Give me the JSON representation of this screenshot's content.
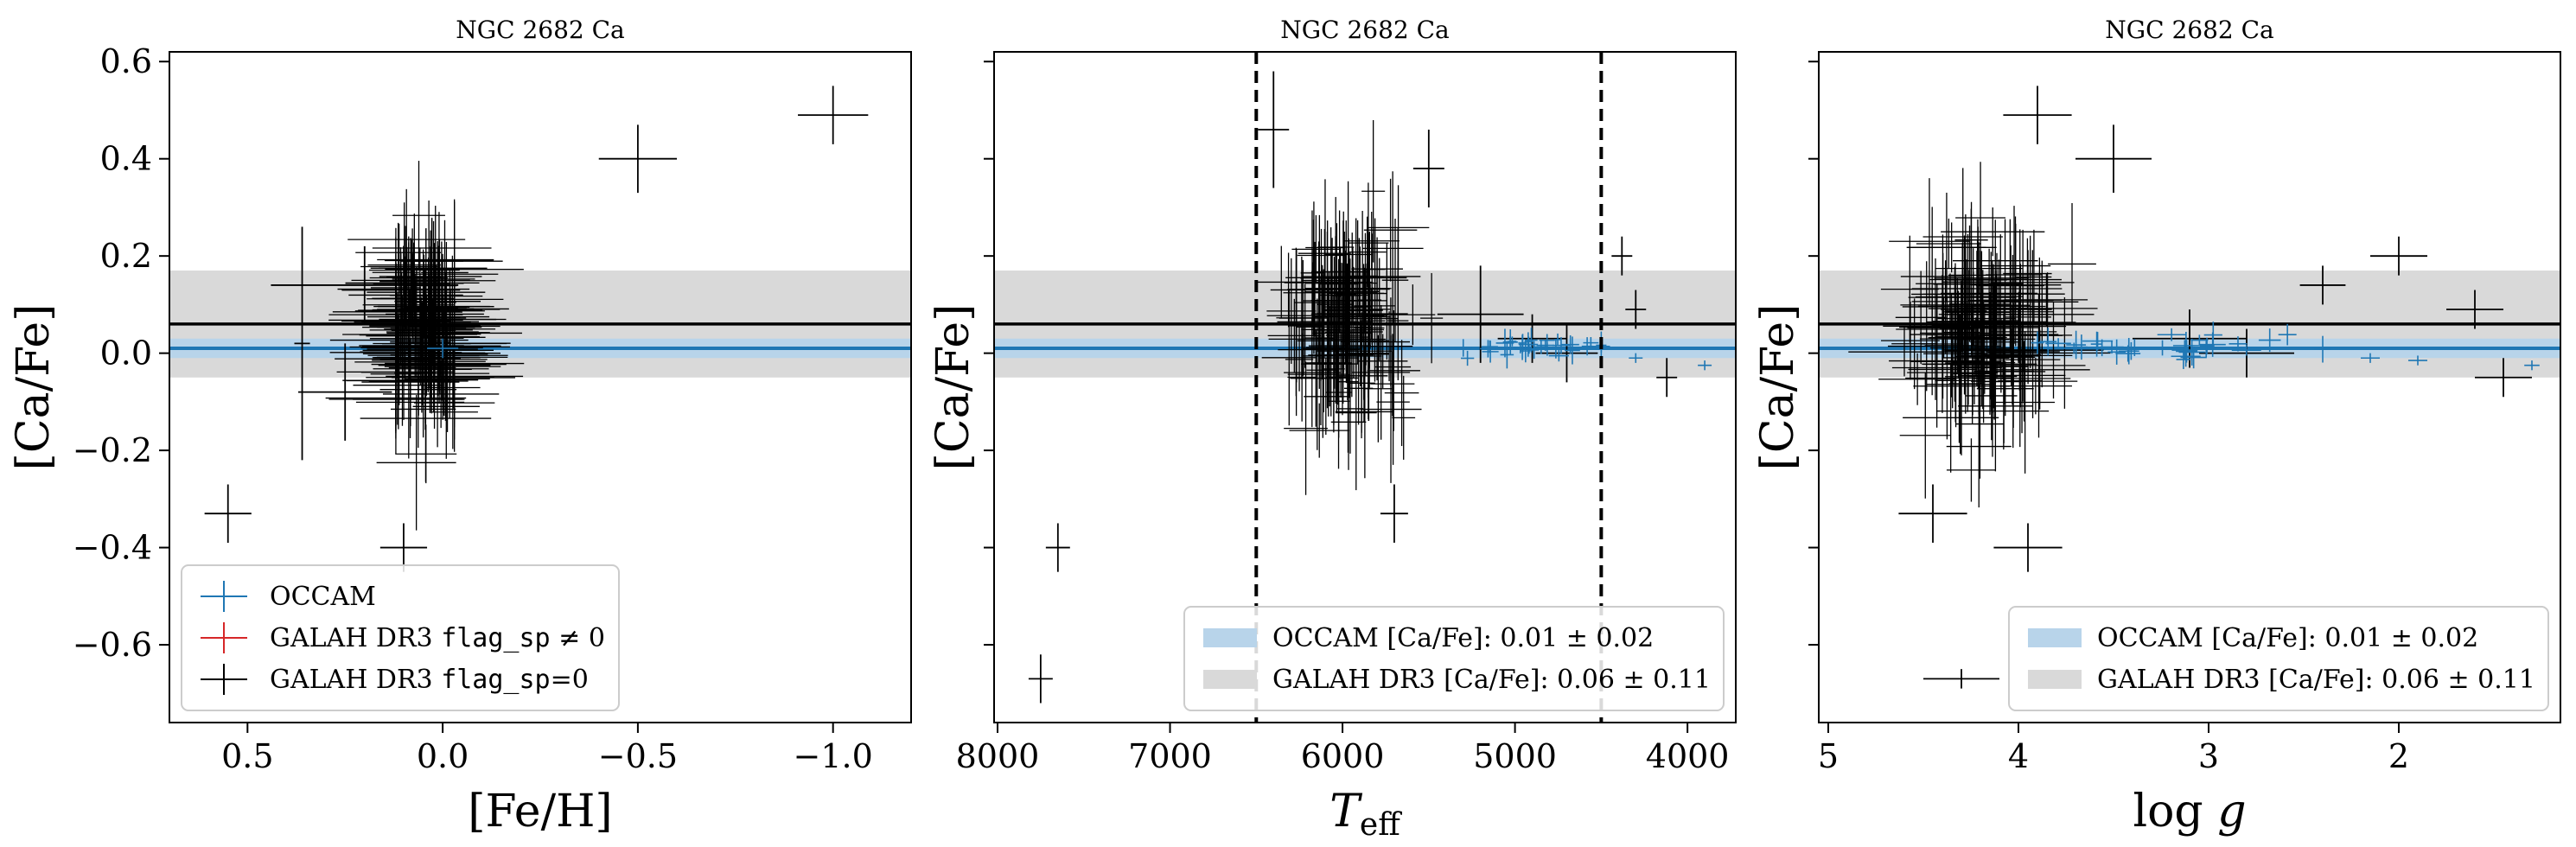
{
  "colors": {
    "occam": "#1f77b4",
    "galah_bad": "#d62728",
    "galah_good": "#000000",
    "galah_band": "#d9d9d9",
    "occam_band": "#b8d4ea"
  },
  "chart_data": [
    {
      "type": "scatter",
      "title": "NGC 2682 Ca",
      "xlabel": "[Fe/H]",
      "ylabel": "[Ca/Fe]",
      "xlim": [
        0.7,
        -1.2
      ],
      "ylim": [
        -0.76,
        0.62
      ],
      "xticks": [
        0.5,
        0.0,
        -0.5,
        -1.0
      ],
      "xticklabels": [
        "0.5",
        "0.0",
        "−0.5",
        "−1.0"
      ],
      "yticks": [
        0.6,
        0.4,
        0.2,
        0.0,
        -0.2,
        -0.4,
        -0.6
      ],
      "yticklabels": [
        "0.6",
        "0.4",
        "0.2",
        "0.0",
        "−0.2",
        "−0.4",
        "−0.6"
      ],
      "show_yticklabels": true,
      "galah_mean": 0.06,
      "galah_std": 0.11,
      "occam_mean": 0.01,
      "occam_std": 0.02,
      "legend": {
        "position": "lower-left",
        "entries": [
          {
            "kind": "cross",
            "color": "#1f77b4",
            "label": "OCCAM"
          },
          {
            "kind": "cross",
            "color": "#d62728",
            "label": "GALAH DR3 ",
            "mono": "flag_sp",
            "suffix": " ≠ 0"
          },
          {
            "kind": "cross",
            "color": "#000000",
            "label": "GALAH DR3 ",
            "mono": "flag_sp",
            "suffix": "=0"
          }
        ]
      },
      "series": [
        {
          "name": "GALAH DR3 flag_sp=0",
          "color": "#000000",
          "cluster": {
            "n": 170,
            "x_center": 0.04,
            "x_spread": 0.06,
            "x_range": [
              0.12,
              -0.03
            ],
            "y_center": 0.05,
            "y_spread": 0.09,
            "xerr": [
              0.06,
              0.18
            ],
            "yerr": [
              0.05,
              0.14
            ]
          },
          "points": [
            {
              "x": -1.0,
              "y": 0.49,
              "xerr": 0.09,
              "yerr": 0.06
            },
            {
              "x": 0.55,
              "y": -0.33,
              "xerr": 0.06,
              "yerr": 0.06
            },
            {
              "x": 0.1,
              "y": -0.4,
              "xerr": 0.06,
              "yerr": 0.05
            },
            {
              "x": -0.5,
              "y": 0.4,
              "xerr": 0.1,
              "yerr": 0.07
            },
            {
              "x": 0.36,
              "y": 0.02,
              "xerr": 0.02,
              "yerr": 0.24
            },
            {
              "x": 0.2,
              "y": 0.14,
              "xerr": 0.24,
              "yerr": 0.08
            },
            {
              "x": 0.25,
              "y": -0.08,
              "xerr": 0.12,
              "yerr": 0.1
            }
          ]
        },
        {
          "name": "OCCAM",
          "color": "#1f77b4",
          "points": [
            {
              "x": 0.0,
              "y": 0.01,
              "xerr": 0.04,
              "yerr": 0.02
            }
          ]
        }
      ]
    },
    {
      "type": "scatter",
      "title": "NGC 2682 Ca",
      "xlabel": "T_eff",
      "ylabel": "[Ca/Fe]",
      "xlim": [
        8020,
        3720
      ],
      "ylim": [
        -0.76,
        0.62
      ],
      "xticks": [
        8000,
        7000,
        6000,
        5000,
        4000
      ],
      "xticklabels": [
        "8000",
        "7000",
        "6000",
        "5000",
        "4000"
      ],
      "yticks": [
        0.6,
        0.4,
        0.2,
        0.0,
        -0.2,
        -0.4,
        -0.6
      ],
      "yticklabels": [
        "0.6",
        "0.4",
        "0.2",
        "0.0",
        "−0.2",
        "−0.4",
        "−0.6"
      ],
      "show_yticklabels": false,
      "vlines": [
        6500,
        4500
      ],
      "galah_mean": 0.06,
      "galah_std": 0.11,
      "occam_mean": 0.01,
      "occam_std": 0.02,
      "legend": {
        "position": "lower-right",
        "entries": [
          {
            "kind": "band",
            "color": "#b8d4ea",
            "label": "OCCAM [Ca/Fe]: ",
            "value": "0.01 ± 0.02"
          },
          {
            "kind": "band",
            "color": "#d9d9d9",
            "label": "GALAH DR3 [Ca/Fe]: ",
            "value": "0.06 ± 0.11"
          }
        ]
      },
      "series": [
        {
          "name": "GALAH DR3 flag_sp=0",
          "color": "#000000",
          "cluster": {
            "n": 170,
            "x_center": 5980,
            "x_spread": 160,
            "x_range": [
              6500,
              5400
            ],
            "y_center": 0.06,
            "y_spread": 0.09,
            "xerr": [
              60,
              180
            ],
            "yerr": [
              0.05,
              0.16
            ]
          },
          "points": [
            {
              "x": 7650,
              "y": -0.4,
              "xerr": 70,
              "yerr": 0.05
            },
            {
              "x": 7750,
              "y": -0.67,
              "xerr": 70,
              "yerr": 0.05
            },
            {
              "x": 4380,
              "y": 0.2,
              "xerr": 60,
              "yerr": 0.04
            },
            {
              "x": 4300,
              "y": 0.09,
              "xerr": 60,
              "yerr": 0.04
            },
            {
              "x": 4120,
              "y": -0.05,
              "xerr": 60,
              "yerr": 0.04
            },
            {
              "x": 5700,
              "y": -0.33,
              "xerr": 80,
              "yerr": 0.06
            },
            {
              "x": 5500,
              "y": 0.38,
              "xerr": 90,
              "yerr": 0.08
            },
            {
              "x": 6400,
              "y": 0.46,
              "xerr": 90,
              "yerr": 0.12
            },
            {
              "x": 4900,
              "y": 0.03,
              "xerr": 200,
              "yerr": 0.05
            },
            {
              "x": 4700,
              "y": 0.0,
              "xerr": 180,
              "yerr": 0.06
            },
            {
              "x": 5200,
              "y": 0.08,
              "xerr": 250,
              "yerr": 0.1
            }
          ]
        },
        {
          "name": "OCCAM",
          "color": "#1f77b4",
          "cluster": {
            "n": 34,
            "x_center": 4950,
            "x_spread": 220,
            "x_range": [
              5300,
              4500
            ],
            "y_center": 0.01,
            "y_spread": 0.012,
            "xerr": [
              20,
              60
            ],
            "yerr": [
              0.01,
              0.03
            ]
          },
          "points": [
            {
              "x": 4300,
              "y": -0.01,
              "xerr": 40,
              "yerr": 0.01
            },
            {
              "x": 3900,
              "y": -0.025,
              "xerr": 40,
              "yerr": 0.01
            }
          ]
        }
      ]
    },
    {
      "type": "scatter",
      "title": "NGC 2682 Ca",
      "xlabel": "log g",
      "ylabel": "[Ca/Fe]",
      "xlim": [
        5.05,
        1.15
      ],
      "ylim": [
        -0.76,
        0.62
      ],
      "xticks": [
        5,
        4,
        3,
        2
      ],
      "xticklabels": [
        "5",
        "4",
        "3",
        "2"
      ],
      "yticks": [
        0.6,
        0.4,
        0.2,
        0.0,
        -0.2,
        -0.4,
        -0.6
      ],
      "yticklabels": [
        "0.6",
        "0.4",
        "0.2",
        "0.0",
        "−0.2",
        "−0.4",
        "−0.6"
      ],
      "show_yticklabels": false,
      "galah_mean": 0.06,
      "galah_std": 0.11,
      "occam_mean": 0.01,
      "occam_std": 0.02,
      "legend": {
        "position": "lower-right",
        "entries": [
          {
            "kind": "band",
            "color": "#b8d4ea",
            "label": "OCCAM [Ca/Fe]: ",
            "value": "0.01 ± 0.02"
          },
          {
            "kind": "band",
            "color": "#d9d9d9",
            "label": "GALAH DR3 [Ca/Fe]: ",
            "value": "0.06 ± 0.11"
          }
        ]
      },
      "series": [
        {
          "name": "GALAH DR3 flag_sp=0",
          "color": "#000000",
          "cluster": {
            "n": 170,
            "x_center": 4.2,
            "x_spread": 0.18,
            "x_range": [
              4.6,
              3.6
            ],
            "y_center": 0.05,
            "y_spread": 0.09,
            "xerr": [
              0.08,
              0.3
            ],
            "yerr": [
              0.05,
              0.15
            ]
          },
          "points": [
            {
              "x": 3.9,
              "y": 0.49,
              "xerr": 0.18,
              "yerr": 0.06
            },
            {
              "x": 3.5,
              "y": 0.4,
              "xerr": 0.2,
              "yerr": 0.07
            },
            {
              "x": 3.95,
              "y": -0.4,
              "xerr": 0.18,
              "yerr": 0.05
            },
            {
              "x": 4.45,
              "y": -0.33,
              "xerr": 0.18,
              "yerr": 0.06
            },
            {
              "x": 2.0,
              "y": 0.2,
              "xerr": 0.15,
              "yerr": 0.04
            },
            {
              "x": 1.6,
              "y": 0.09,
              "xerr": 0.15,
              "yerr": 0.04
            },
            {
              "x": 1.45,
              "y": -0.05,
              "xerr": 0.15,
              "yerr": 0.04
            },
            {
              "x": 2.4,
              "y": 0.14,
              "xerr": 0.12,
              "yerr": 0.04
            },
            {
              "x": 4.3,
              "y": -0.67,
              "xerr": 0.2,
              "yerr": 0.02
            },
            {
              "x": 2.8,
              "y": 0.0,
              "xerr": 0.25,
              "yerr": 0.05
            },
            {
              "x": 3.1,
              "y": 0.03,
              "xerr": 0.3,
              "yerr": 0.06
            }
          ]
        },
        {
          "name": "OCCAM",
          "color": "#1f77b4",
          "cluster": {
            "n": 34,
            "x_center": 3.3,
            "x_spread": 0.35,
            "x_range": [
              3.9,
              2.4
            ],
            "y_center": 0.01,
            "y_spread": 0.012,
            "xerr": [
              0.03,
              0.08
            ],
            "yerr": [
              0.01,
              0.03
            ]
          },
          "points": [
            {
              "x": 2.15,
              "y": -0.01,
              "xerr": 0.05,
              "yerr": 0.01
            },
            {
              "x": 1.9,
              "y": -0.015,
              "xerr": 0.05,
              "yerr": 0.01
            },
            {
              "x": 1.3,
              "y": -0.025,
              "xerr": 0.04,
              "yerr": 0.01
            }
          ]
        }
      ]
    }
  ]
}
